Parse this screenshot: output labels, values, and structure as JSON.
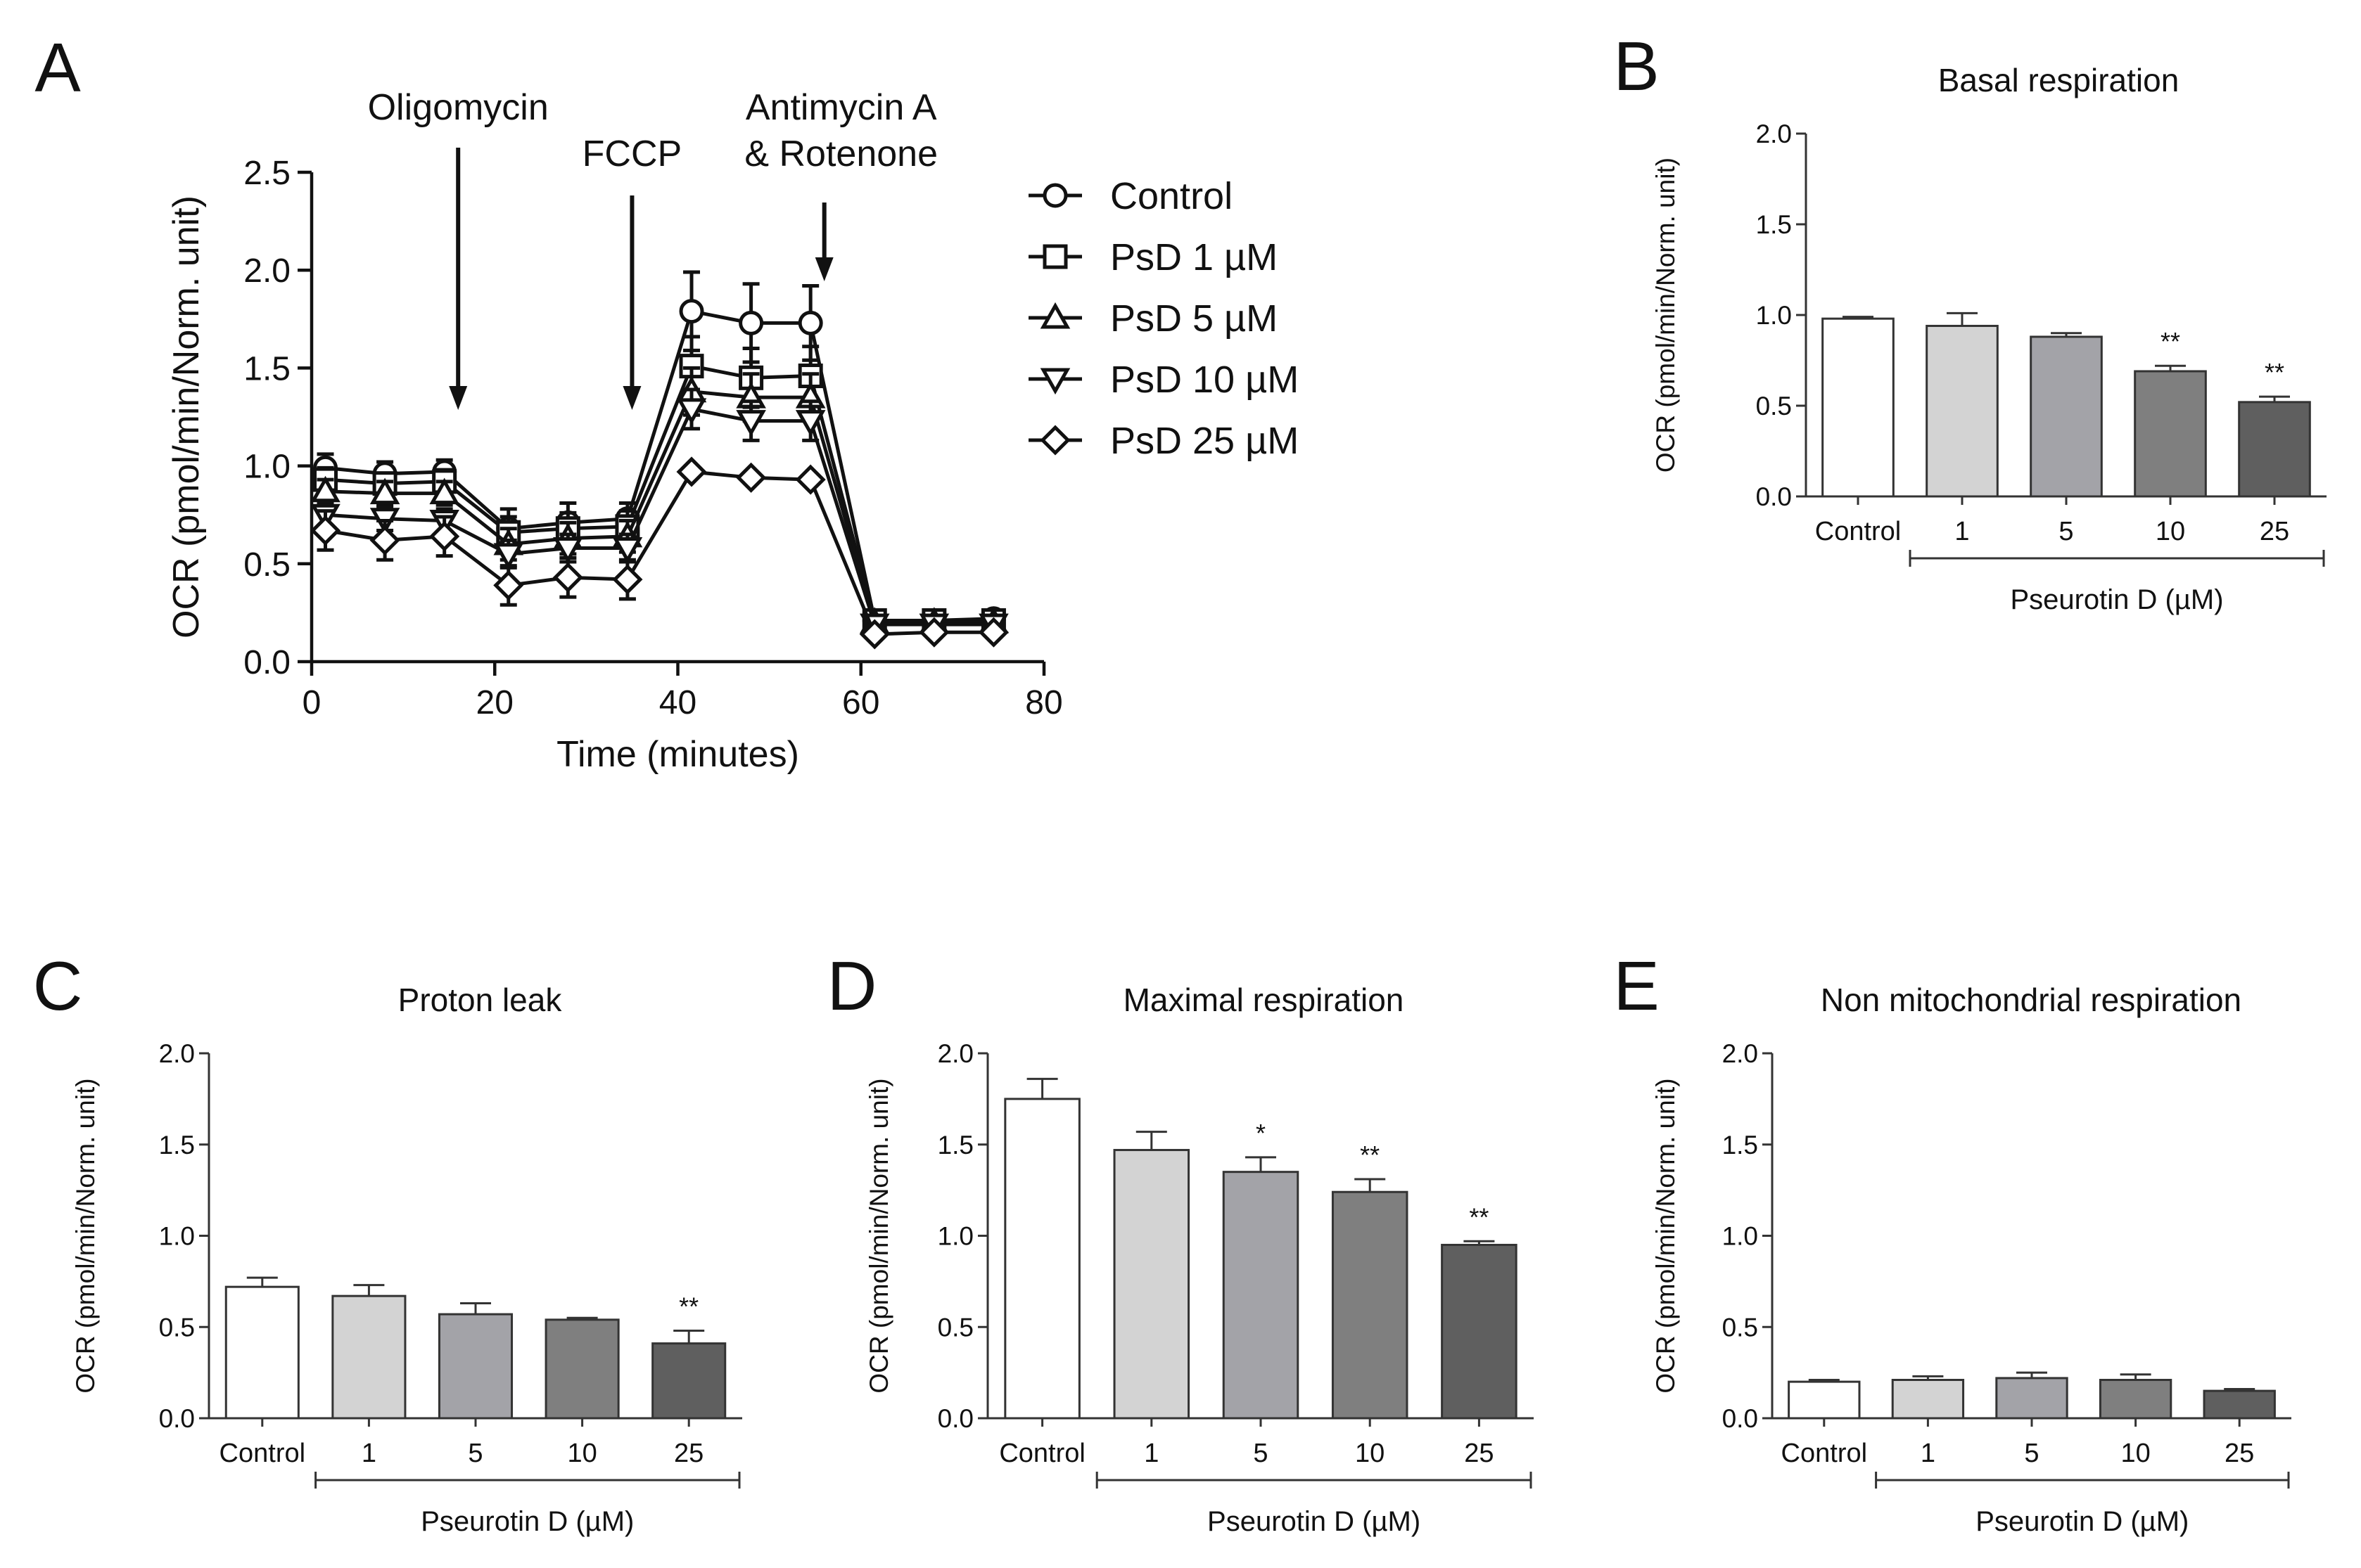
{
  "line_panel": {
    "letter": "A",
    "xlabel": "Time (minutes)",
    "ylabel": "OCR (pmol/min/Norm. unit)",
    "xlim": [
      0,
      80
    ],
    "ylim": [
      0,
      2.5
    ],
    "xticks": [
      "0",
      "20",
      "40",
      "60",
      "80"
    ],
    "yticks": [
      "0.0",
      "0.5",
      "1.0",
      "1.5",
      "2.0",
      "2.5"
    ],
    "injections": [
      {
        "label": "Oligomycin",
        "lines": [
          "Oligomycin"
        ],
        "time": 16
      },
      {
        "label": "FCCP",
        "lines": [
          "FCCP"
        ],
        "time": 35
      },
      {
        "label": "Antimycin A & Rotenone",
        "lines": [
          "Antimycin A",
          "& Rotenone"
        ],
        "time": 56
      }
    ]
  },
  "chart_data": [
    {
      "panel": "A",
      "type": "line",
      "xlabel": "Time (minutes)",
      "ylabel": "OCR (pmol/min/Norm. unit)",
      "xlim": [
        0,
        80
      ],
      "ylim": [
        0,
        2.5
      ],
      "x": [
        1.5,
        8,
        14.5,
        21.5,
        28,
        34.5,
        41.5,
        48,
        54.5,
        61.5,
        68,
        74.5
      ],
      "series": [
        {
          "name": "Control",
          "legend": "Control",
          "marker": "circle",
          "values": [
            0.99,
            0.96,
            0.97,
            0.68,
            0.71,
            0.73,
            1.79,
            1.73,
            1.73,
            0.21,
            0.21,
            0.22
          ],
          "errors": [
            0.07,
            0.06,
            0.06,
            0.1,
            0.1,
            0.08,
            0.2,
            0.2,
            0.19,
            0.04,
            0.03,
            0.04
          ]
        },
        {
          "name": "PsD 1 µM",
          "legend": "PsD   1 µM",
          "marker": "square",
          "values": [
            0.93,
            0.91,
            0.92,
            0.66,
            0.68,
            0.69,
            1.51,
            1.45,
            1.46,
            0.21,
            0.21,
            0.21
          ],
          "errors": [
            0.06,
            0.05,
            0.06,
            0.08,
            0.08,
            0.08,
            0.15,
            0.15,
            0.15,
            0.03,
            0.03,
            0.03
          ]
        },
        {
          "name": "PsD 5 µM",
          "legend": "PsD   5 µM",
          "marker": "triangle-up",
          "values": [
            0.87,
            0.86,
            0.86,
            0.6,
            0.63,
            0.64,
            1.38,
            1.35,
            1.35,
            0.2,
            0.2,
            0.2
          ],
          "errors": [
            0.06,
            0.06,
            0.06,
            0.08,
            0.08,
            0.08,
            0.12,
            0.12,
            0.12,
            0.03,
            0.03,
            0.03
          ]
        },
        {
          "name": "PsD 10 µM",
          "legend": "PsD 10 µM",
          "marker": "triangle-down",
          "values": [
            0.75,
            0.73,
            0.72,
            0.55,
            0.58,
            0.58,
            1.29,
            1.23,
            1.23,
            0.19,
            0.19,
            0.19
          ],
          "errors": [
            0.06,
            0.06,
            0.06,
            0.07,
            0.07,
            0.07,
            0.1,
            0.1,
            0.1,
            0.03,
            0.03,
            0.03
          ]
        },
        {
          "name": "PsD 25 µM",
          "legend": "PsD 25 µM",
          "marker": "diamond",
          "values": [
            0.67,
            0.62,
            0.64,
            0.39,
            0.43,
            0.42,
            0.97,
            0.94,
            0.93,
            0.14,
            0.15,
            0.15
          ],
          "errors": [
            0.1,
            0.1,
            0.1,
            0.1,
            0.1,
            0.1,
            0.02,
            0.02,
            0.02,
            0.02,
            0.02,
            0.02
          ]
        }
      ]
    },
    {
      "panel": "B",
      "type": "bar",
      "title": "Basal respiration",
      "ylabel": "OCR (pmol/min/Norm. unit)",
      "xlabel": "Pseurotin D (µM)",
      "ylim": [
        0,
        2.0
      ],
      "yticks": [
        "0.0",
        "0.5",
        "1.0",
        "1.5",
        "2.0"
      ],
      "categories": [
        "Control",
        "1",
        "5",
        "10",
        "25"
      ],
      "values": [
        0.98,
        0.94,
        0.88,
        0.69,
        0.52
      ],
      "errors": [
        0.01,
        0.07,
        0.02,
        0.03,
        0.03
      ],
      "annotations": [
        "",
        "",
        "",
        "**",
        "**"
      ],
      "colors": [
        "#ffffff",
        "#d3d3d3",
        "#a3a3a8",
        "#7f7f7f",
        "#5f5f5f"
      ]
    },
    {
      "panel": "C",
      "type": "bar",
      "title": "Proton leak",
      "ylabel": "OCR (pmol/min/Norm. unit)",
      "xlabel": "Pseurotin D (µM)",
      "ylim": [
        0,
        2.0
      ],
      "yticks": [
        "0.0",
        "0.5",
        "1.0",
        "1.5",
        "2.0"
      ],
      "categories": [
        "Control",
        "1",
        "5",
        "10",
        "25"
      ],
      "values": [
        0.72,
        0.67,
        0.57,
        0.54,
        0.41
      ],
      "errors": [
        0.05,
        0.06,
        0.06,
        0.01,
        0.07
      ],
      "annotations": [
        "",
        "",
        "",
        "",
        "**"
      ],
      "colors": [
        "#ffffff",
        "#d3d3d3",
        "#a3a3a8",
        "#7f7f7f",
        "#5f5f5f"
      ]
    },
    {
      "panel": "D",
      "type": "bar",
      "title": "Maximal respiration",
      "ylabel": "OCR (pmol/min/Norm. unit)",
      "xlabel": "Pseurotin D (µM)",
      "ylim": [
        0,
        2.0
      ],
      "yticks": [
        "0.0",
        "0.5",
        "1.0",
        "1.5",
        "2.0"
      ],
      "categories": [
        "Control",
        "1",
        "5",
        "10",
        "25"
      ],
      "values": [
        1.75,
        1.47,
        1.35,
        1.24,
        0.95
      ],
      "errors": [
        0.11,
        0.1,
        0.08,
        0.07,
        0.02
      ],
      "annotations": [
        "",
        "",
        "*",
        "**",
        "**"
      ],
      "colors": [
        "#ffffff",
        "#d3d3d3",
        "#a3a3a8",
        "#7f7f7f",
        "#5f5f5f"
      ]
    },
    {
      "panel": "E",
      "type": "bar",
      "title": "Non mitochondrial respiration",
      "ylabel": "OCR (pmol/min/Norm. unit)",
      "xlabel": "Pseurotin D (µM)",
      "ylim": [
        0,
        2.0
      ],
      "yticks": [
        "0.0",
        "0.5",
        "1.0",
        "1.5",
        "2.0"
      ],
      "categories": [
        "Control",
        "1",
        "5",
        "10",
        "25"
      ],
      "values": [
        0.2,
        0.21,
        0.22,
        0.21,
        0.15
      ],
      "errors": [
        0.01,
        0.02,
        0.03,
        0.03,
        0.01
      ],
      "annotations": [
        "",
        "",
        "",
        "",
        ""
      ],
      "colors": [
        "#ffffff",
        "#d3d3d3",
        "#a3a3a8",
        "#7f7f7f",
        "#5f5f5f"
      ]
    }
  ]
}
